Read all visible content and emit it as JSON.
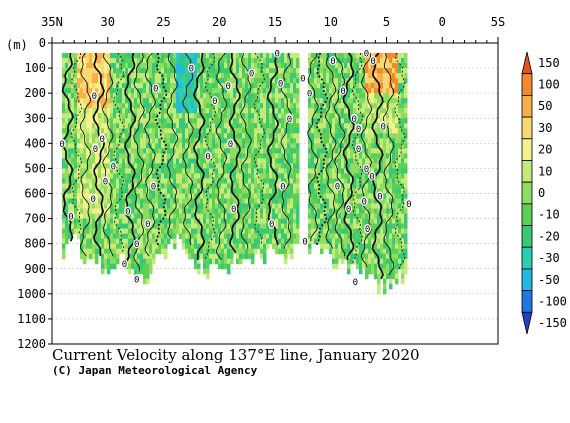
{
  "chart_data": {
    "type": "heatmap",
    "title": "Current Velocity along 137°E line, January 2020",
    "credit": "(C) Japan Meteorological Agency",
    "ylabel": "(m)",
    "x_ticks": [
      "35N",
      "30",
      "25",
      "20",
      "15",
      "10",
      "5",
      "0",
      "5S"
    ],
    "x_tick_values": [
      35,
      30,
      25,
      20,
      15,
      10,
      5,
      0,
      -5
    ],
    "xlim": [
      35,
      -5
    ],
    "y_ticks": [
      "0",
      "100",
      "200",
      "300",
      "400",
      "500",
      "600",
      "700",
      "800",
      "900",
      "1000",
      "1100",
      "1200"
    ],
    "ylim": [
      0,
      1200
    ],
    "colorbar": {
      "labels": [
        "150",
        "100",
        "50",
        "30",
        "20",
        "10",
        "0",
        "-10",
        "-20",
        "-30",
        "-50",
        "-100",
        "-150"
      ],
      "colors": [
        "#e8501e",
        "#f08a2c",
        "#f5b04a",
        "#f8d870",
        "#f4f08a",
        "#c4ea7a",
        "#8fdc62",
        "#5cd056",
        "#38c878",
        "#2ad0b0",
        "#22b8e4",
        "#1e78e0",
        "#2040c8"
      ]
    },
    "zero_contour_labels": [
      {
        "lat": 34.1,
        "depth": 400
      },
      {
        "lat": 33.3,
        "depth": 690
      },
      {
        "lat": 31.2,
        "depth": 210
      },
      {
        "lat": 30.5,
        "depth": 380
      },
      {
        "lat": 31.1,
        "depth": 420
      },
      {
        "lat": 29.5,
        "depth": 490
      },
      {
        "lat": 30.2,
        "depth": 550
      },
      {
        "lat": 31.3,
        "depth": 620
      },
      {
        "lat": 28.2,
        "depth": 670
      },
      {
        "lat": 28.5,
        "depth": 880
      },
      {
        "lat": 27.4,
        "depth": 800
      },
      {
        "lat": 27.4,
        "depth": 940
      },
      {
        "lat": 25.7,
        "depth": 180
      },
      {
        "lat": 25.9,
        "depth": 570
      },
      {
        "lat": 26.4,
        "depth": 720
      },
      {
        "lat": 22.5,
        "depth": 100
      },
      {
        "lat": 21.0,
        "depth": 450
      },
      {
        "lat": 20.4,
        "depth": 230
      },
      {
        "lat": 19.2,
        "depth": 170
      },
      {
        "lat": 19.0,
        "depth": 400
      },
      {
        "lat": 18.7,
        "depth": 660
      },
      {
        "lat": 17.1,
        "depth": 120
      },
      {
        "lat": 14.8,
        "depth": 40
      },
      {
        "lat": 14.5,
        "depth": 160
      },
      {
        "lat": 13.7,
        "depth": 300
      },
      {
        "lat": 14.3,
        "depth": 570
      },
      {
        "lat": 15.3,
        "depth": 720
      },
      {
        "lat": 12.5,
        "depth": 140
      },
      {
        "lat": 11.9,
        "depth": 200
      },
      {
        "lat": 12.3,
        "depth": 790
      },
      {
        "lat": 9.8,
        "depth": 70
      },
      {
        "lat": 8.9,
        "depth": 190
      },
      {
        "lat": 7.9,
        "depth": 300
      },
      {
        "lat": 7.5,
        "depth": 340
      },
      {
        "lat": 7.5,
        "depth": 420
      },
      {
        "lat": 6.8,
        "depth": 500
      },
      {
        "lat": 6.3,
        "depth": 530
      },
      {
        "lat": 9.4,
        "depth": 570
      },
      {
        "lat": 7.0,
        "depth": 630
      },
      {
        "lat": 8.4,
        "depth": 660
      },
      {
        "lat": 5.6,
        "depth": 610
      },
      {
        "lat": 5.3,
        "depth": 330
      },
      {
        "lat": 6.7,
        "depth": 740
      },
      {
        "lat": 6.8,
        "depth": 40
      },
      {
        "lat": 6.2,
        "depth": 70
      },
      {
        "lat": 3.0,
        "depth": 640
      },
      {
        "lat": 7.8,
        "depth": 950
      }
    ]
  }
}
